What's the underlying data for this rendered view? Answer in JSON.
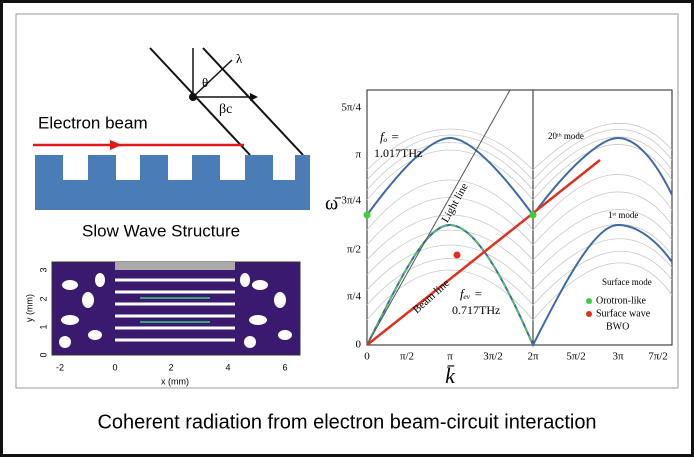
{
  "schematic": {
    "wavelength": "λ",
    "angle": "θ",
    "velocity": "βc",
    "beam_label": "Electron beam",
    "structure_label": "Slow Wave Structure"
  },
  "field_plot": {
    "x_ticks": [
      "-2",
      "0",
      "2",
      "4",
      "6"
    ],
    "x_label": "x (mm)",
    "y_ticks": [
      "0",
      "1",
      "2",
      "3"
    ],
    "y_label": "y (mm)"
  },
  "dispersion": {
    "y_ticks": [
      "0",
      "π/4",
      "π/2",
      "3π/4",
      "π",
      "5π/4"
    ],
    "x_ticks": [
      "0",
      "π/2",
      "π",
      "3π/2",
      "2π",
      "5π/2",
      "3π",
      "7π/2"
    ],
    "y_label": "ω̄",
    "x_label": "k̄",
    "annotations": {
      "fo": "fₒ =",
      "fo_value": "1.017THz",
      "fev": "fₑᵥ =",
      "fev_value": "0.717THz",
      "light_line": "Light line",
      "beam_line": "Beam line",
      "mode20": "20ᵗʰ mode",
      "mode1": "1ˢᵗ mode",
      "surface": "Surface mode"
    },
    "legend": [
      "Orotron-like",
      "Surface wave",
      "BWO"
    ]
  },
  "caption": "Coherent radiation from electron beam-circuit interaction"
}
